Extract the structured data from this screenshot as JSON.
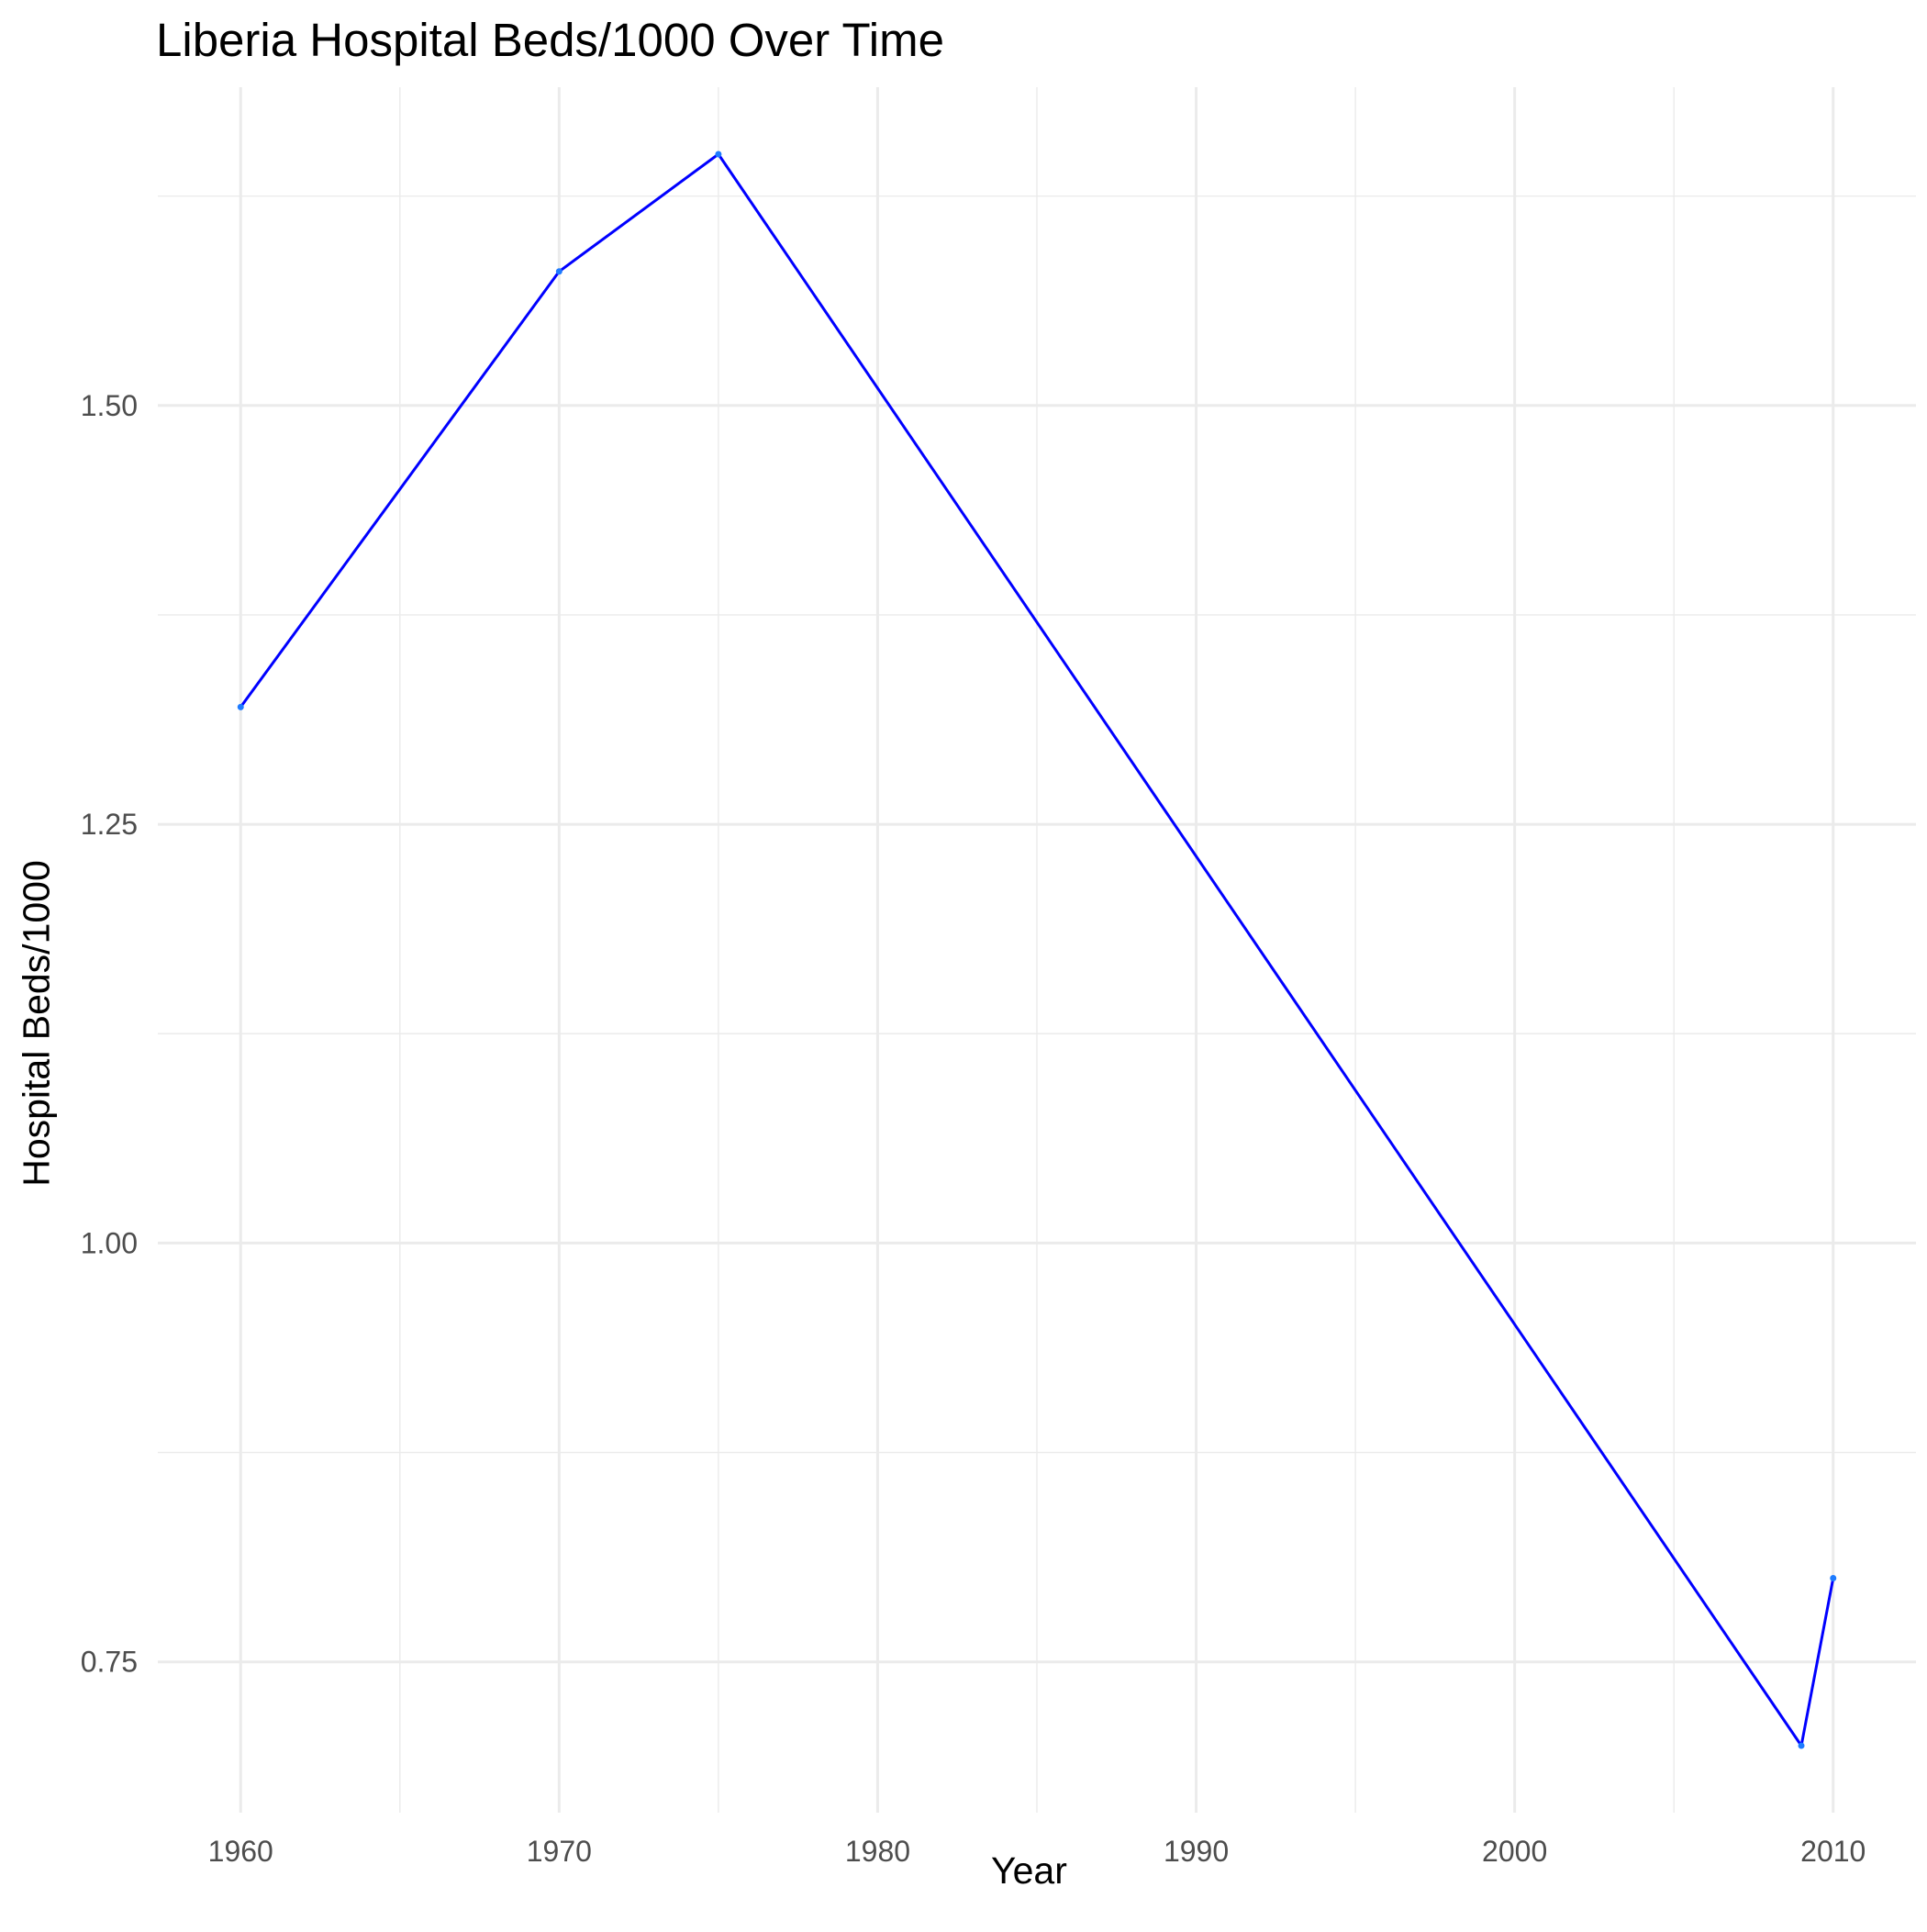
{
  "chart_data": {
    "type": "line",
    "title": "Liberia Hospital Beds/1000 Over Time",
    "xlabel": "Year",
    "ylabel": "Hospital Beds/1000",
    "x": [
      1960,
      1970,
      1975,
      2009,
      2010
    ],
    "series": [
      {
        "values": [
          1.32,
          1.58,
          1.65,
          0.7,
          0.8
        ]
      }
    ],
    "xlim": [
      1957.4,
      2012.6
    ],
    "ylim": [
      0.66,
      1.69
    ],
    "x_ticks": [
      1960,
      1970,
      1980,
      1990,
      2000,
      2010
    ],
    "x_tick_labels": [
      "1960",
      "1970",
      "1980",
      "1990",
      "2000",
      "2010"
    ],
    "y_ticks": [
      0.75,
      1.0,
      1.25,
      1.5
    ],
    "y_tick_labels": [
      "0.75",
      "1.00",
      "1.25",
      "1.50"
    ],
    "x_minor_ticks": [
      1965,
      1975,
      1985,
      1995,
      2005
    ],
    "y_minor_ticks": [
      0.875,
      1.125,
      1.375,
      1.625
    ],
    "grid": true,
    "legend": "none",
    "colors": {
      "line": "#0000ff",
      "point": "#1e7bff",
      "grid": "#ebebeb",
      "tick_label": "#4d4d4d"
    }
  }
}
